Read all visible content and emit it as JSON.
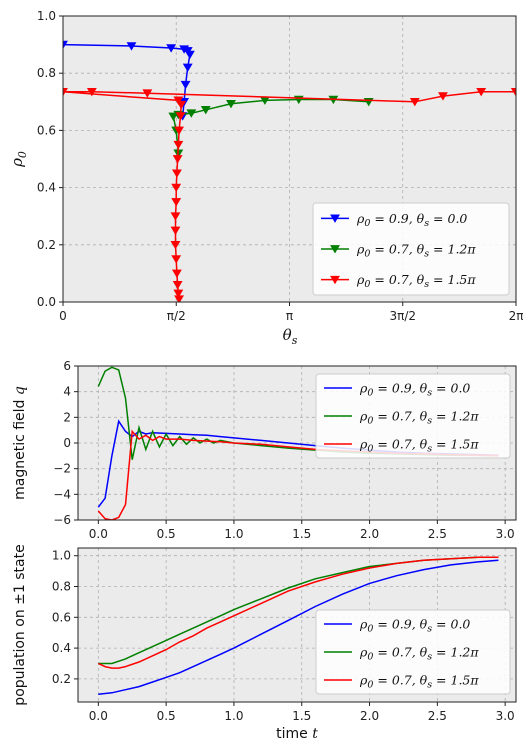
{
  "chart_data": [
    {
      "type": "line",
      "xlabel": "θs",
      "ylabel": "ρ0",
      "xlim": [
        0,
        6.2832
      ],
      "ylim": [
        0,
        1.0
      ],
      "xtick_values": [
        0,
        1.5708,
        3.1416,
        4.7124,
        6.2832
      ],
      "xtick_labels": [
        "0",
        "π/2",
        "π",
        "3π/2",
        "2π"
      ],
      "ytick_values": [
        0.0,
        0.2,
        0.4,
        0.6,
        0.8,
        1.0
      ],
      "ytick_labels": [
        "0.0",
        "0.2",
        "0.4",
        "0.6",
        "0.8",
        "1.0"
      ],
      "grid": true,
      "legend_position": "lower-right",
      "series": [
        {
          "name": "ρ0 = 0.9, θs = 0.0",
          "color": "#0000ff",
          "marker": "triangle-down",
          "points": [
            [
              0.0,
              0.9
            ],
            [
              0.95,
              0.895
            ],
            [
              1.5,
              0.888
            ],
            [
              1.68,
              0.884
            ],
            [
              1.73,
              0.878
            ],
            [
              1.76,
              0.865
            ],
            [
              1.73,
              0.82
            ],
            [
              1.7,
              0.76
            ],
            [
              1.68,
              0.7
            ],
            [
              1.66,
              0.65
            ]
          ]
        },
        {
          "name": "ρ0 = 0.7, θs = 1.2π",
          "color": "#008000",
          "marker": "triangle-down",
          "points": [
            [
              4.24,
              0.7
            ],
            [
              3.75,
              0.708
            ],
            [
              3.27,
              0.708
            ],
            [
              2.8,
              0.705
            ],
            [
              2.33,
              0.693
            ],
            [
              1.98,
              0.672
            ],
            [
              1.78,
              0.66
            ],
            [
              1.6,
              0.655
            ],
            [
              1.53,
              0.649
            ],
            [
              1.57,
              0.6
            ],
            [
              1.6,
              0.52
            ]
          ]
        },
        {
          "name": "ρ0 = 0.7, θs = 1.5π",
          "color": "#ff0000",
          "marker": "triangle-down",
          "points": [
            [
              6.28,
              0.735
            ],
            [
              5.8,
              0.735
            ],
            [
              5.27,
              0.72
            ],
            [
              4.88,
              0.7
            ],
            [
              1.17,
              0.73
            ],
            [
              0.4,
              0.735
            ],
            [
              0.0,
              0.735
            ],
            [
              1.6,
              0.705
            ],
            [
              1.64,
              0.69
            ],
            [
              1.63,
              0.65
            ],
            [
              1.61,
              0.6
            ],
            [
              1.6,
              0.55
            ],
            [
              1.59,
              0.5
            ],
            [
              1.58,
              0.45
            ],
            [
              1.57,
              0.4
            ],
            [
              1.57,
              0.35
            ],
            [
              1.56,
              0.3
            ],
            [
              1.56,
              0.25
            ],
            [
              1.56,
              0.2
            ],
            [
              1.57,
              0.15
            ],
            [
              1.58,
              0.1
            ],
            [
              1.59,
              0.06
            ],
            [
              1.6,
              0.03
            ],
            [
              1.61,
              0.01
            ]
          ]
        }
      ]
    },
    {
      "type": "line",
      "xlabel": "",
      "ylabel": "magnetic field q",
      "xlim": [
        -0.15,
        3.08
      ],
      "ylim": [
        -6,
        6
      ],
      "xtick_values": [
        0.0,
        0.5,
        1.0,
        1.5,
        2.0,
        2.5,
        3.0
      ],
      "xtick_labels": [
        "0.0",
        "0.5",
        "1.0",
        "1.5",
        "2.0",
        "2.5",
        "3.0"
      ],
      "ytick_values": [
        -6,
        -4,
        -2,
        0,
        2,
        4,
        6
      ],
      "ytick_labels": [
        "−6",
        "−4",
        "−2",
        "0",
        "2",
        "4",
        "6"
      ],
      "grid": true,
      "legend_position": "upper-right",
      "series": [
        {
          "name": "ρ0 = 0.9, θs = 0.0",
          "color": "#0000ff",
          "x": [
            0.0,
            0.05,
            0.1,
            0.15,
            0.2,
            0.25,
            0.3,
            0.35,
            0.4,
            0.5,
            0.6,
            0.7,
            0.8,
            0.9,
            1.0,
            1.2,
            1.4,
            1.6,
            1.8,
            2.0,
            2.2,
            2.4,
            2.6,
            2.8,
            2.95
          ],
          "y": [
            -5.0,
            -4.3,
            -1.0,
            1.7,
            0.9,
            0.5,
            0.9,
            0.7,
            0.8,
            0.75,
            0.7,
            0.65,
            0.6,
            0.5,
            0.4,
            0.2,
            0.0,
            -0.2,
            -0.4,
            -0.55,
            -0.7,
            -0.8,
            -0.85,
            -0.9,
            -0.95
          ]
        },
        {
          "name": "ρ0 = 0.7, θs = 1.2π",
          "color": "#008000",
          "x": [
            0.0,
            0.05,
            0.1,
            0.15,
            0.2,
            0.25,
            0.3,
            0.35,
            0.4,
            0.45,
            0.5,
            0.55,
            0.6,
            0.65,
            0.7,
            0.75,
            0.8,
            0.85,
            0.9,
            1.0,
            1.2,
            1.4,
            1.6,
            1.8,
            2.0,
            2.2,
            2.4,
            2.6,
            2.8,
            2.95
          ],
          "y": [
            4.4,
            5.6,
            5.9,
            5.7,
            3.5,
            -1.3,
            1.2,
            -0.5,
            0.9,
            -0.3,
            0.7,
            -0.2,
            0.5,
            -0.1,
            0.4,
            0.0,
            0.3,
            0.0,
            0.2,
            0.0,
            -0.2,
            -0.4,
            -0.55,
            -0.7,
            -0.8,
            -0.85,
            -0.9,
            -0.95,
            -0.97,
            -1.0
          ]
        },
        {
          "name": "ρ0 = 0.7, θs = 1.5π",
          "color": "#ff0000",
          "x": [
            0.0,
            0.05,
            0.1,
            0.15,
            0.2,
            0.25,
            0.3,
            0.35,
            0.4,
            0.45,
            0.5,
            0.6,
            0.7,
            0.8,
            0.9,
            1.0,
            1.2,
            1.4,
            1.6,
            1.8,
            2.0,
            2.2,
            2.4,
            2.6,
            2.8,
            2.95
          ],
          "y": [
            -5.3,
            -5.9,
            -6.0,
            -5.8,
            -4.8,
            0.9,
            0.3,
            0.6,
            0.2,
            0.5,
            0.3,
            0.3,
            0.2,
            0.15,
            0.1,
            0.0,
            -0.1,
            -0.3,
            -0.5,
            -0.6,
            -0.7,
            -0.8,
            -0.85,
            -0.9,
            -0.95,
            -1.0
          ]
        }
      ]
    },
    {
      "type": "line",
      "xlabel": "time t",
      "ylabel": "population on ±1 state",
      "xlim": [
        -0.15,
        3.08
      ],
      "ylim": [
        0.05,
        1.05
      ],
      "xtick_values": [
        0.0,
        0.5,
        1.0,
        1.5,
        2.0,
        2.5,
        3.0
      ],
      "xtick_labels": [
        "0.0",
        "0.5",
        "1.0",
        "1.5",
        "2.0",
        "2.5",
        "3.0"
      ],
      "ytick_values": [
        0.2,
        0.4,
        0.6,
        0.8,
        1.0
      ],
      "ytick_labels": [
        "0.2",
        "0.4",
        "0.6",
        "0.8",
        "1.0"
      ],
      "grid": true,
      "legend_position": "lower-right",
      "series": [
        {
          "name": "ρ0 = 0.9, θs = 0.0",
          "color": "#0000ff",
          "x": [
            0.0,
            0.1,
            0.2,
            0.3,
            0.4,
            0.5,
            0.6,
            0.7,
            0.8,
            0.9,
            1.0,
            1.2,
            1.4,
            1.6,
            1.8,
            2.0,
            2.2,
            2.4,
            2.6,
            2.8,
            2.95
          ],
          "y": [
            0.1,
            0.11,
            0.13,
            0.15,
            0.18,
            0.21,
            0.24,
            0.28,
            0.32,
            0.36,
            0.4,
            0.49,
            0.58,
            0.67,
            0.75,
            0.82,
            0.87,
            0.91,
            0.94,
            0.96,
            0.97
          ]
        },
        {
          "name": "ρ0 = 0.7, θs = 1.2π",
          "color": "#008000",
          "x": [
            0.0,
            0.1,
            0.2,
            0.3,
            0.4,
            0.5,
            0.6,
            0.7,
            0.8,
            0.9,
            1.0,
            1.2,
            1.4,
            1.6,
            1.8,
            2.0,
            2.2,
            2.4,
            2.6,
            2.8,
            2.95
          ],
          "y": [
            0.3,
            0.3,
            0.33,
            0.37,
            0.41,
            0.45,
            0.49,
            0.53,
            0.57,
            0.61,
            0.65,
            0.72,
            0.79,
            0.85,
            0.89,
            0.93,
            0.95,
            0.97,
            0.98,
            0.99,
            0.99
          ]
        },
        {
          "name": "ρ0 = 0.7, θs = 1.5π",
          "color": "#ff0000",
          "x": [
            0.0,
            0.05,
            0.1,
            0.15,
            0.2,
            0.3,
            0.4,
            0.5,
            0.6,
            0.7,
            0.8,
            0.9,
            1.0,
            1.2,
            1.4,
            1.6,
            1.8,
            2.0,
            2.2,
            2.4,
            2.6,
            2.8,
            2.95
          ],
          "y": [
            0.3,
            0.28,
            0.27,
            0.27,
            0.28,
            0.31,
            0.35,
            0.39,
            0.44,
            0.48,
            0.53,
            0.57,
            0.61,
            0.69,
            0.77,
            0.83,
            0.88,
            0.92,
            0.95,
            0.97,
            0.98,
            0.99,
            0.99
          ]
        }
      ]
    }
  ]
}
